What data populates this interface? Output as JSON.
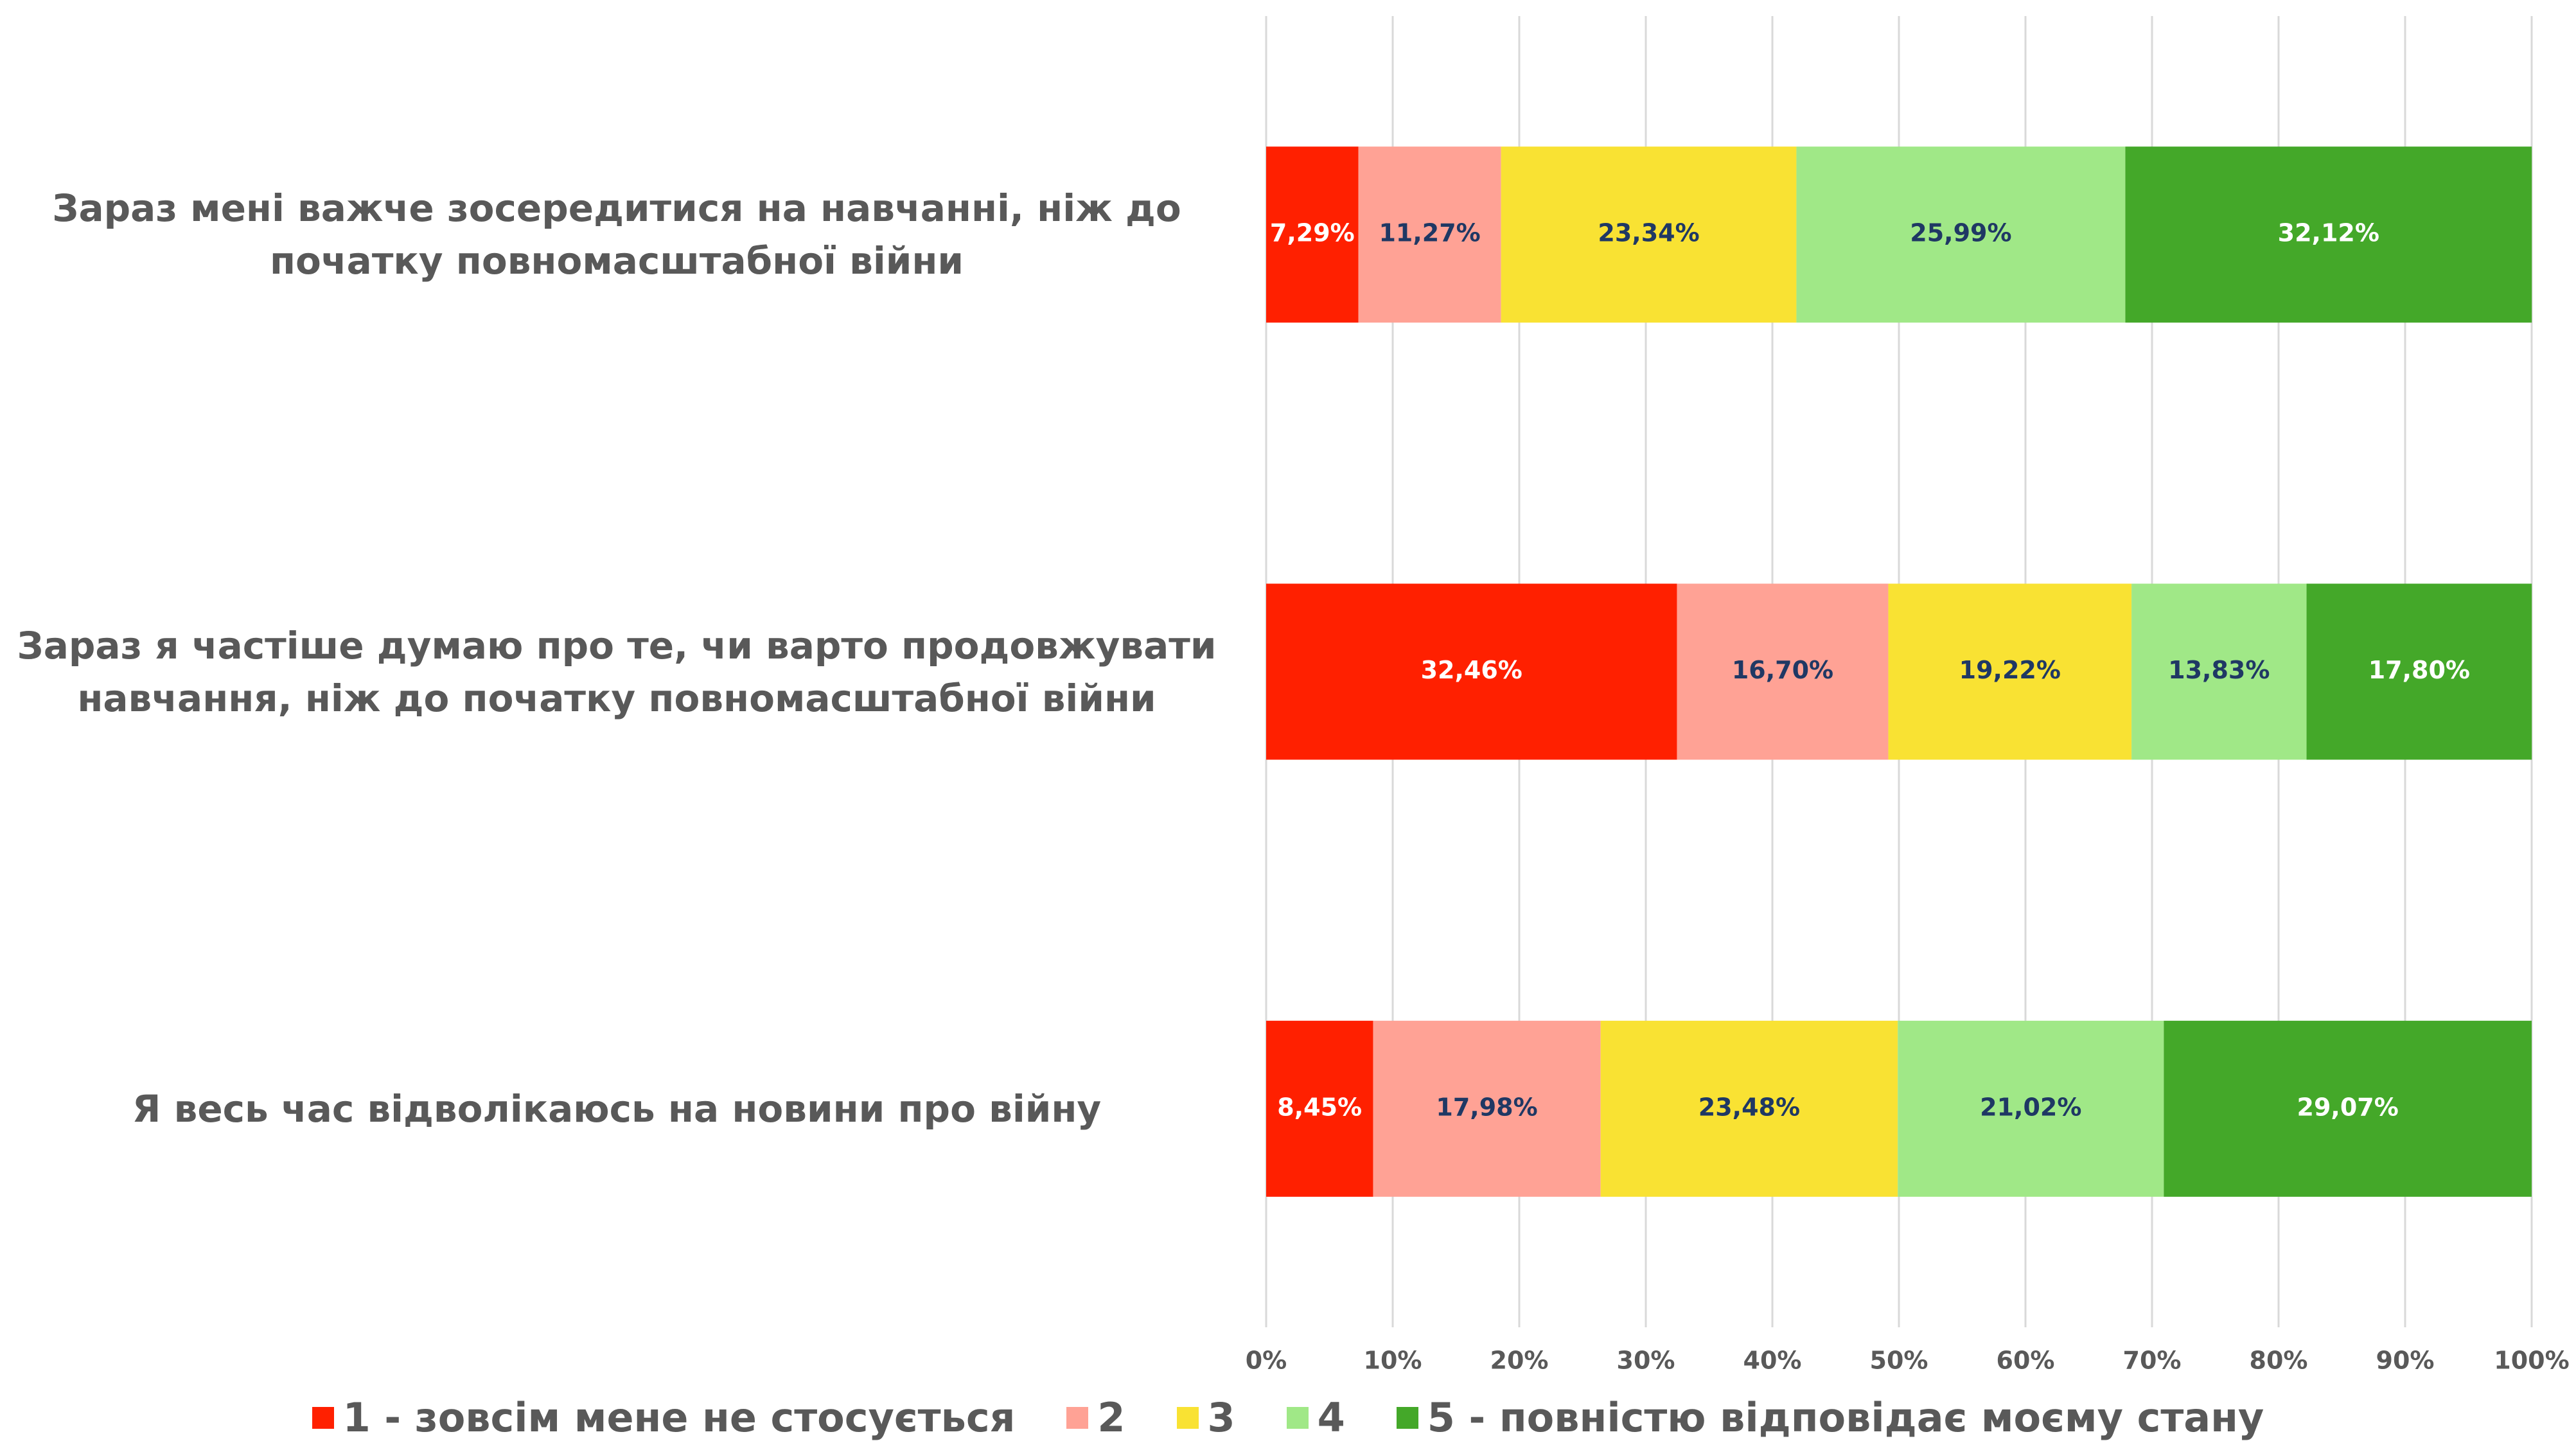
{
  "chart_data": {
    "type": "stacked_bar_horizontal",
    "categories": [
      "Зараз мені важче зосередитися на навчанні, ніж до початку повномасштабної війни",
      "Зараз я частіше думаю про те, чи варто продовжувати навчання, ніж до початку повномасштабної війни",
      "Я весь час відволікаюсь на новини про війну"
    ],
    "series": [
      {
        "name": "1 - зовсім мене не стосується",
        "color": "#ff2000",
        "label_color": "#ffffff",
        "values": [
          7.29,
          32.46,
          8.45
        ],
        "value_labels": [
          "7,29%",
          "32,46%",
          "8,45%"
        ]
      },
      {
        "name": "2",
        "color": "#ffa295",
        "label_color": "#1f3864",
        "values": [
          11.27,
          16.7,
          17.98
        ],
        "value_labels": [
          "11,27%",
          "16,70%",
          "17,98%"
        ]
      },
      {
        "name": "3",
        "color": "#f9e233",
        "label_color": "#1f3864",
        "values": [
          23.34,
          19.22,
          23.48
        ],
        "value_labels": [
          "23,34%",
          "19,22%",
          "23,48%"
        ]
      },
      {
        "name": "4",
        "color": "#a0e887",
        "label_color": "#1f3864",
        "values": [
          25.99,
          13.83,
          21.02
        ],
        "value_labels": [
          "25,99%",
          "13,83%",
          "21,02%"
        ]
      },
      {
        "name": "5 - повністю відповідає моєму стану",
        "color": "#44a829",
        "label_color": "#ffffff",
        "values": [
          32.12,
          17.8,
          29.07
        ],
        "value_labels": [
          "32,12%",
          "17,80%",
          "29,07%"
        ]
      }
    ],
    "xlim": [
      0,
      100
    ],
    "xticks": [
      {
        "value": 0,
        "label": "0%"
      },
      {
        "value": 10,
        "label": "10%"
      },
      {
        "value": 20,
        "label": "20%"
      },
      {
        "value": 30,
        "label": "30%"
      },
      {
        "value": 40,
        "label": "40%"
      },
      {
        "value": 50,
        "label": "50%"
      },
      {
        "value": 60,
        "label": "60%"
      },
      {
        "value": 70,
        "label": "70%"
      },
      {
        "value": 80,
        "label": "80%"
      },
      {
        "value": 90,
        "label": "90%"
      },
      {
        "value": 100,
        "label": "100%"
      }
    ],
    "grid": true,
    "legend": "bottom"
  }
}
